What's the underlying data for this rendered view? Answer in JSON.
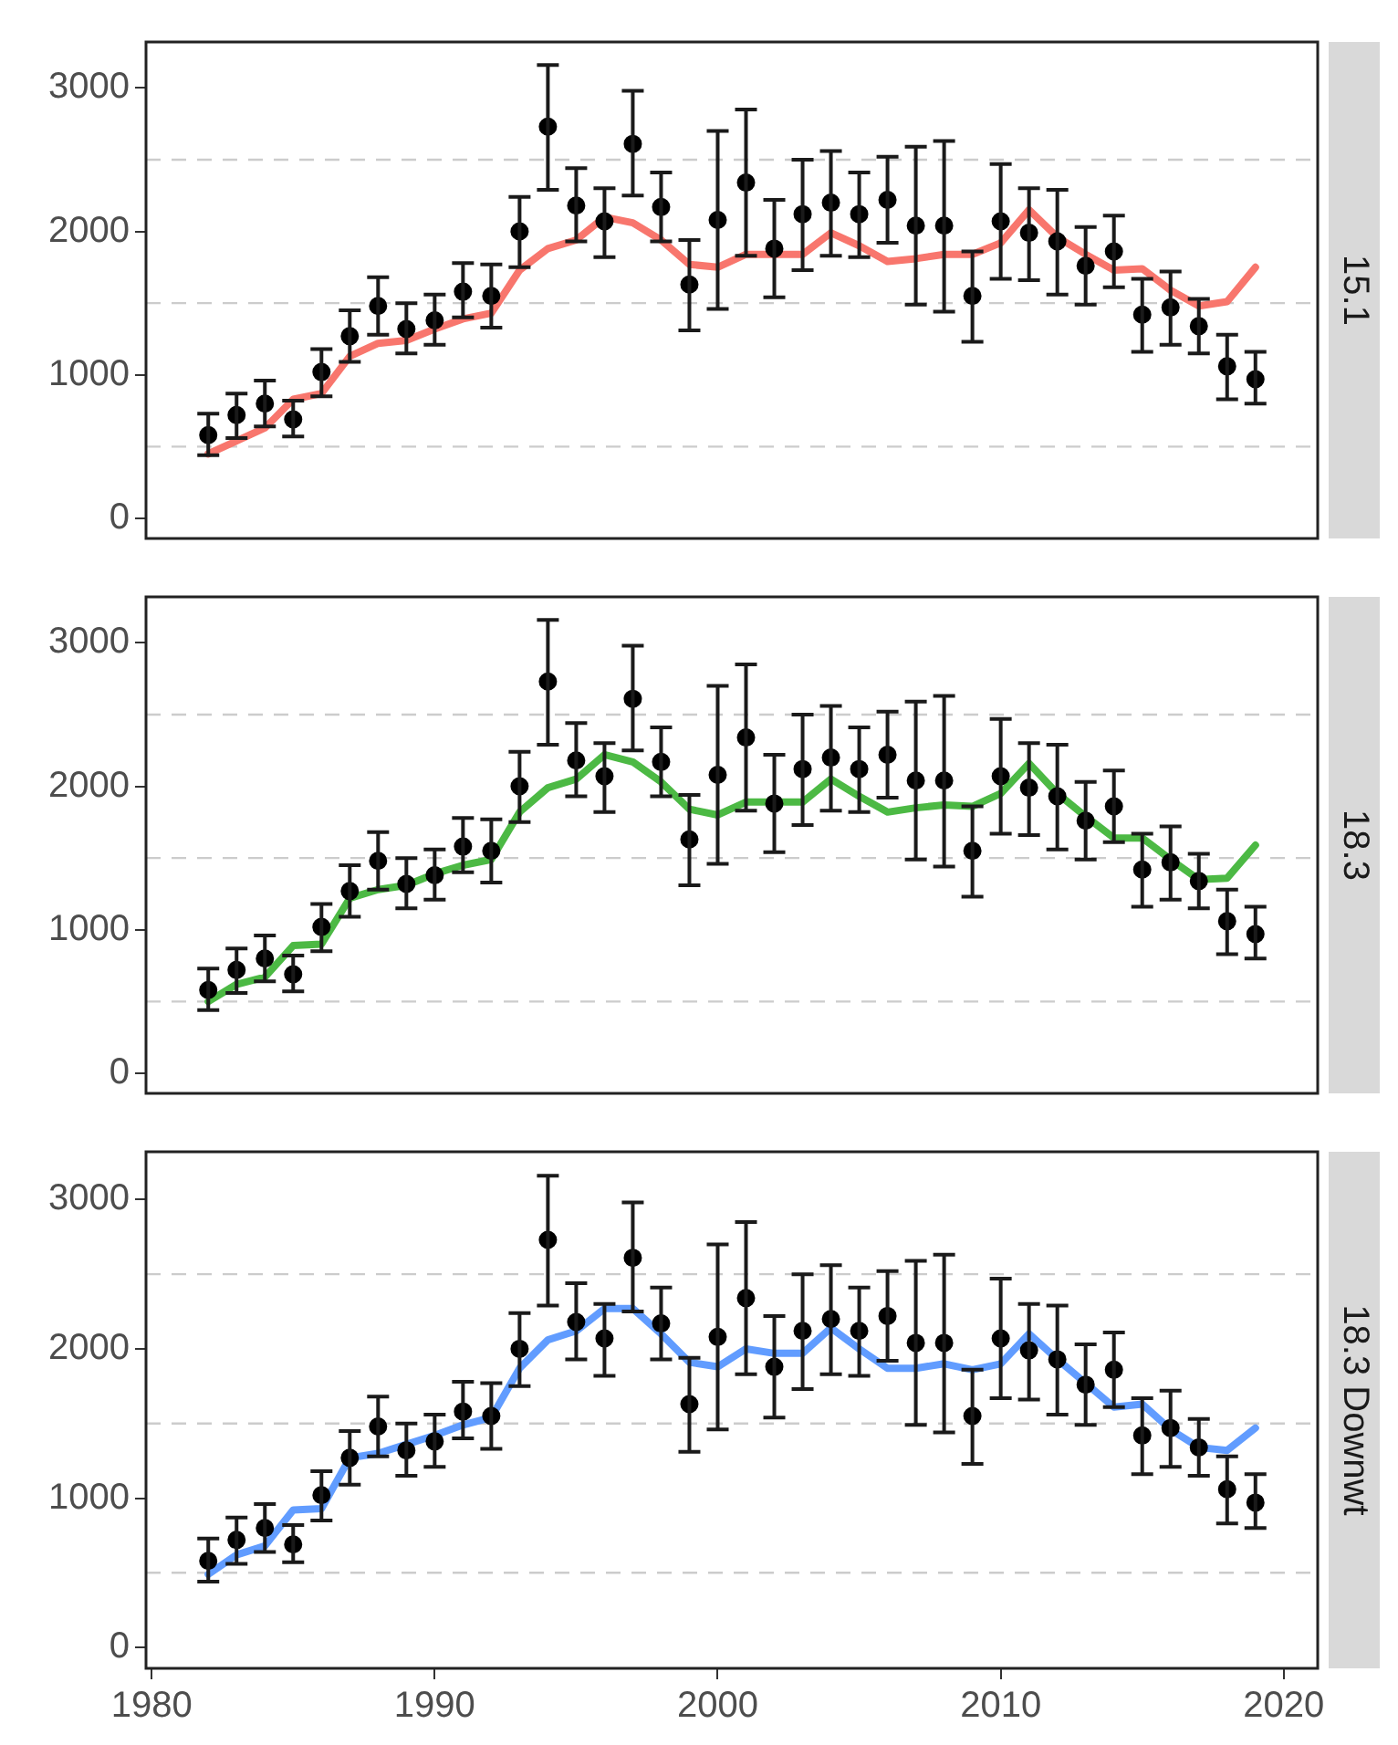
{
  "chart_data": [
    {
      "type": "line",
      "title": "15.1",
      "x": [
        1982,
        1983,
        1984,
        1985,
        1986,
        1987,
        1988,
        1989,
        1990,
        1991,
        1992,
        1993,
        1994,
        1995,
        1996,
        1997,
        1998,
        1999,
        2000,
        2001,
        2002,
        2003,
        2004,
        2005,
        2006,
        2007,
        2008,
        2009,
        2010,
        2011,
        2012,
        2013,
        2014,
        2015,
        2016,
        2017,
        2018,
        2019
      ],
      "xlim": [
        1979.8,
        2021.2
      ],
      "xticks": [
        1980,
        1990,
        2000,
        2010,
        2020
      ],
      "ylim": [
        -140,
        3320
      ],
      "yticks": [
        0,
        1000,
        2000,
        3000
      ],
      "tick_labels": "y",
      "ref_lines": [
        {
          "axis": "y",
          "value": 500,
          "color": "#cccccc",
          "line_style": "dashed"
        },
        {
          "axis": "y",
          "value": 1500,
          "color": "#cccccc",
          "line_style": "dashed"
        },
        {
          "axis": "y",
          "value": 2500,
          "color": "#cccccc",
          "line_style": "dashed"
        }
      ],
      "series": [
        {
          "type": "scatter",
          "color": "#000000",
          "marker": "circle",
          "values": [
            580,
            720,
            800,
            690,
            1020,
            1270,
            1480,
            1320,
            1380,
            1580,
            1550,
            2000,
            2730,
            2180,
            2070,
            2610,
            2170,
            1630,
            2080,
            2340,
            1880,
            2120,
            2200,
            2120,
            2220,
            2040,
            2040,
            1550,
            2070,
            1990,
            1930,
            1760,
            1860,
            1420,
            1470,
            1340,
            1060,
            970
          ],
          "errors": [
            [
              440,
              730
            ],
            [
              560,
              870
            ],
            [
              640,
              960
            ],
            [
              570,
              820
            ],
            [
              850,
              1180
            ],
            [
              1090,
              1450
            ],
            [
              1280,
              1680
            ],
            [
              1150,
              1500
            ],
            [
              1210,
              1560
            ],
            [
              1400,
              1780
            ],
            [
              1330,
              1770
            ],
            [
              1750,
              2240
            ],
            [
              2290,
              3160
            ],
            [
              1930,
              2440
            ],
            [
              1820,
              2300
            ],
            [
              2250,
              2980
            ],
            [
              1930,
              2410
            ],
            [
              1310,
              1940
            ],
            [
              1460,
              2700
            ],
            [
              1830,
              2850
            ],
            [
              1540,
              2220
            ],
            [
              1730,
              2500
            ],
            [
              1830,
              2560
            ],
            [
              1820,
              2410
            ],
            [
              1920,
              2520
            ],
            [
              1490,
              2590
            ],
            [
              1440,
              2630
            ],
            [
              1230,
              1860
            ],
            [
              1670,
              2470
            ],
            [
              1660,
              2300
            ],
            [
              1560,
              2290
            ],
            [
              1490,
              2030
            ],
            [
              1610,
              2110
            ],
            [
              1160,
              1670
            ],
            [
              1210,
              1720
            ],
            [
              1150,
              1530
            ],
            [
              830,
              1280
            ],
            [
              800,
              1160
            ]
          ]
        },
        {
          "type": "line",
          "color": "#f8766d",
          "values": [
            450,
            540,
            630,
            830,
            870,
            1130,
            1220,
            1240,
            1320,
            1390,
            1430,
            1730,
            1880,
            1940,
            2100,
            2060,
            1940,
            1770,
            1750,
            1840,
            1840,
            1840,
            1990,
            1900,
            1790,
            1810,
            1840,
            1840,
            1920,
            2150,
            1960,
            1840,
            1730,
            1740,
            1590,
            1480,
            1510,
            1750
          ]
        }
      ]
    },
    {
      "type": "line",
      "title": "18.3",
      "x": [
        1982,
        1983,
        1984,
        1985,
        1986,
        1987,
        1988,
        1989,
        1990,
        1991,
        1992,
        1993,
        1994,
        1995,
        1996,
        1997,
        1998,
        1999,
        2000,
        2001,
        2002,
        2003,
        2004,
        2005,
        2006,
        2007,
        2008,
        2009,
        2010,
        2011,
        2012,
        2013,
        2014,
        2015,
        2016,
        2017,
        2018,
        2019
      ],
      "xlim": [
        1979.8,
        2021.2
      ],
      "xticks": [
        1980,
        1990,
        2000,
        2010,
        2020
      ],
      "ylim": [
        -140,
        3320
      ],
      "yticks": [
        0,
        1000,
        2000,
        3000
      ],
      "tick_labels": "y",
      "ref_lines": [
        {
          "axis": "y",
          "value": 500,
          "color": "#cccccc",
          "line_style": "dashed"
        },
        {
          "axis": "y",
          "value": 1500,
          "color": "#cccccc",
          "line_style": "dashed"
        },
        {
          "axis": "y",
          "value": 2500,
          "color": "#cccccc",
          "line_style": "dashed"
        }
      ],
      "series": [
        {
          "type": "scatter",
          "color": "#000000",
          "marker": "circle",
          "values": [
            580,
            720,
            800,
            690,
            1020,
            1270,
            1480,
            1320,
            1380,
            1580,
            1550,
            2000,
            2730,
            2180,
            2070,
            2610,
            2170,
            1630,
            2080,
            2340,
            1880,
            2120,
            2200,
            2120,
            2220,
            2040,
            2040,
            1550,
            2070,
            1990,
            1930,
            1760,
            1860,
            1420,
            1470,
            1340,
            1060,
            970
          ],
          "errors": [
            [
              440,
              730
            ],
            [
              560,
              870
            ],
            [
              640,
              960
            ],
            [
              570,
              820
            ],
            [
              850,
              1180
            ],
            [
              1090,
              1450
            ],
            [
              1280,
              1680
            ],
            [
              1150,
              1500
            ],
            [
              1210,
              1560
            ],
            [
              1400,
              1780
            ],
            [
              1330,
              1770
            ],
            [
              1750,
              2240
            ],
            [
              2290,
              3160
            ],
            [
              1930,
              2440
            ],
            [
              1820,
              2300
            ],
            [
              2250,
              2980
            ],
            [
              1930,
              2410
            ],
            [
              1310,
              1940
            ],
            [
              1460,
              2700
            ],
            [
              1830,
              2850
            ],
            [
              1540,
              2220
            ],
            [
              1730,
              2500
            ],
            [
              1830,
              2560
            ],
            [
              1820,
              2410
            ],
            [
              1920,
              2520
            ],
            [
              1490,
              2590
            ],
            [
              1440,
              2630
            ],
            [
              1230,
              1860
            ],
            [
              1670,
              2470
            ],
            [
              1660,
              2300
            ],
            [
              1560,
              2290
            ],
            [
              1490,
              2030
            ],
            [
              1610,
              2110
            ],
            [
              1160,
              1670
            ],
            [
              1210,
              1720
            ],
            [
              1150,
              1530
            ],
            [
              830,
              1280
            ],
            [
              800,
              1160
            ]
          ]
        },
        {
          "type": "line",
          "color": "#4cb944",
          "values": [
            500,
            620,
            670,
            890,
            900,
            1220,
            1280,
            1310,
            1390,
            1450,
            1490,
            1820,
            1990,
            2050,
            2220,
            2170,
            2030,
            1840,
            1800,
            1890,
            1890,
            1890,
            2050,
            1930,
            1820,
            1850,
            1870,
            1860,
            1950,
            2160,
            1950,
            1790,
            1640,
            1640,
            1490,
            1350,
            1360,
            1590
          ]
        }
      ]
    },
    {
      "type": "line",
      "title": "18.3 Downwt",
      "x": [
        1982,
        1983,
        1984,
        1985,
        1986,
        1987,
        1988,
        1989,
        1990,
        1991,
        1992,
        1993,
        1994,
        1995,
        1996,
        1997,
        1998,
        1999,
        2000,
        2001,
        2002,
        2003,
        2004,
        2005,
        2006,
        2007,
        2008,
        2009,
        2010,
        2011,
        2012,
        2013,
        2014,
        2015,
        2016,
        2017,
        2018,
        2019
      ],
      "xlim": [
        1979.8,
        2021.2
      ],
      "xticks": [
        1980,
        1990,
        2000,
        2010,
        2020
      ],
      "ylim": [
        -140,
        3320
      ],
      "yticks": [
        0,
        1000,
        2000,
        3000
      ],
      "ref_lines": [
        {
          "axis": "y",
          "value": 500,
          "color": "#cccccc",
          "line_style": "dashed"
        },
        {
          "axis": "y",
          "value": 1500,
          "color": "#cccccc",
          "line_style": "dashed"
        },
        {
          "axis": "y",
          "value": 2500,
          "color": "#cccccc",
          "line_style": "dashed"
        }
      ],
      "series": [
        {
          "type": "scatter",
          "color": "#000000",
          "marker": "circle",
          "values": [
            580,
            720,
            800,
            690,
            1020,
            1270,
            1480,
            1320,
            1380,
            1580,
            1550,
            2000,
            2730,
            2180,
            2070,
            2610,
            2170,
            1630,
            2080,
            2340,
            1880,
            2120,
            2200,
            2120,
            2220,
            2040,
            2040,
            1550,
            2070,
            1990,
            1930,
            1760,
            1860,
            1420,
            1470,
            1340,
            1060,
            970
          ],
          "errors": [
            [
              440,
              730
            ],
            [
              560,
              870
            ],
            [
              640,
              960
            ],
            [
              570,
              820
            ],
            [
              850,
              1180
            ],
            [
              1090,
              1450
            ],
            [
              1280,
              1680
            ],
            [
              1150,
              1500
            ],
            [
              1210,
              1560
            ],
            [
              1400,
              1780
            ],
            [
              1330,
              1770
            ],
            [
              1750,
              2240
            ],
            [
              2290,
              3160
            ],
            [
              1930,
              2440
            ],
            [
              1820,
              2300
            ],
            [
              2250,
              2980
            ],
            [
              1930,
              2410
            ],
            [
              1310,
              1940
            ],
            [
              1460,
              2700
            ],
            [
              1830,
              2850
            ],
            [
              1540,
              2220
            ],
            [
              1730,
              2500
            ],
            [
              1830,
              2560
            ],
            [
              1820,
              2410
            ],
            [
              1920,
              2520
            ],
            [
              1490,
              2590
            ],
            [
              1440,
              2630
            ],
            [
              1230,
              1860
            ],
            [
              1670,
              2470
            ],
            [
              1660,
              2300
            ],
            [
              1560,
              2290
            ],
            [
              1490,
              2030
            ],
            [
              1610,
              2110
            ],
            [
              1160,
              1670
            ],
            [
              1210,
              1720
            ],
            [
              1150,
              1530
            ],
            [
              830,
              1280
            ],
            [
              800,
              1160
            ]
          ]
        },
        {
          "type": "line",
          "color": "#619cff",
          "values": [
            490,
            620,
            680,
            920,
            930,
            1270,
            1300,
            1360,
            1420,
            1490,
            1540,
            1870,
            2060,
            2120,
            2270,
            2270,
            2100,
            1910,
            1880,
            2000,
            1970,
            1970,
            2140,
            2000,
            1870,
            1870,
            1900,
            1860,
            1900,
            2100,
            1930,
            1770,
            1610,
            1630,
            1460,
            1340,
            1320,
            1470
          ]
        }
      ]
    }
  ]
}
